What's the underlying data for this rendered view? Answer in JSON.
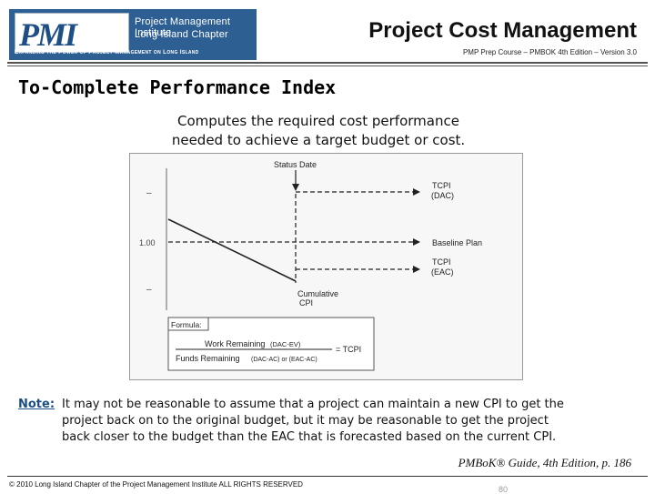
{
  "logo": {
    "letters": "PMI",
    "org_line_1": "Project Management Institute",
    "org_line_2": "Long Island Chapter",
    "tagline": "Expanding the Power of Project Management on Long Island"
  },
  "header": {
    "title": "Project Cost Management",
    "subtitle": "PMP Prep Course – PMBOK 4th Edition – Version 3.0"
  },
  "section_heading": "To-Complete Performance Index",
  "intro": {
    "line_1": "Computes the required cost performance",
    "line_2": "needed to achieve a target budget or cost."
  },
  "figure": {
    "status_date": "Status Date",
    "tcpi_dac_1": "TCPI",
    "tcpi_dac_2": "(DAC)",
    "baseline_plan": "Baseline Plan",
    "tcpi_eac_1": "TCPI",
    "tcpi_eac_2": "(EAC)",
    "cumulative_1": "Cumulative",
    "cumulative_2": "CPI",
    "y_dash_top": "–",
    "y_value": "1.00",
    "y_dash_bottom": "–",
    "formula_label": "Formula:",
    "numerator_main": "Work Remaining",
    "numerator_paren": "(DAC-EV)",
    "denominator_main": "Funds Remaining",
    "denominator_paren": "(DAC-AC) or (EAC-AC)",
    "equals_tcpi": "= TCPI"
  },
  "note": {
    "label": "Note:",
    "line_1": "It may not be reasonable to assume that a project can maintain a new CPI to get the",
    "line_2": "project back on to the original budget, but it may be reasonable to get the project",
    "line_3": "back closer to the budget than the EAC that is forecasted based on the current CPI."
  },
  "citation": "PMBoK® Guide, 4th Edition, p. 186",
  "footer": {
    "copyright": "© 2010 Long Island Chapter of the Project Management Institute  ALL RIGHTS RESERVED",
    "page_number": "80"
  }
}
